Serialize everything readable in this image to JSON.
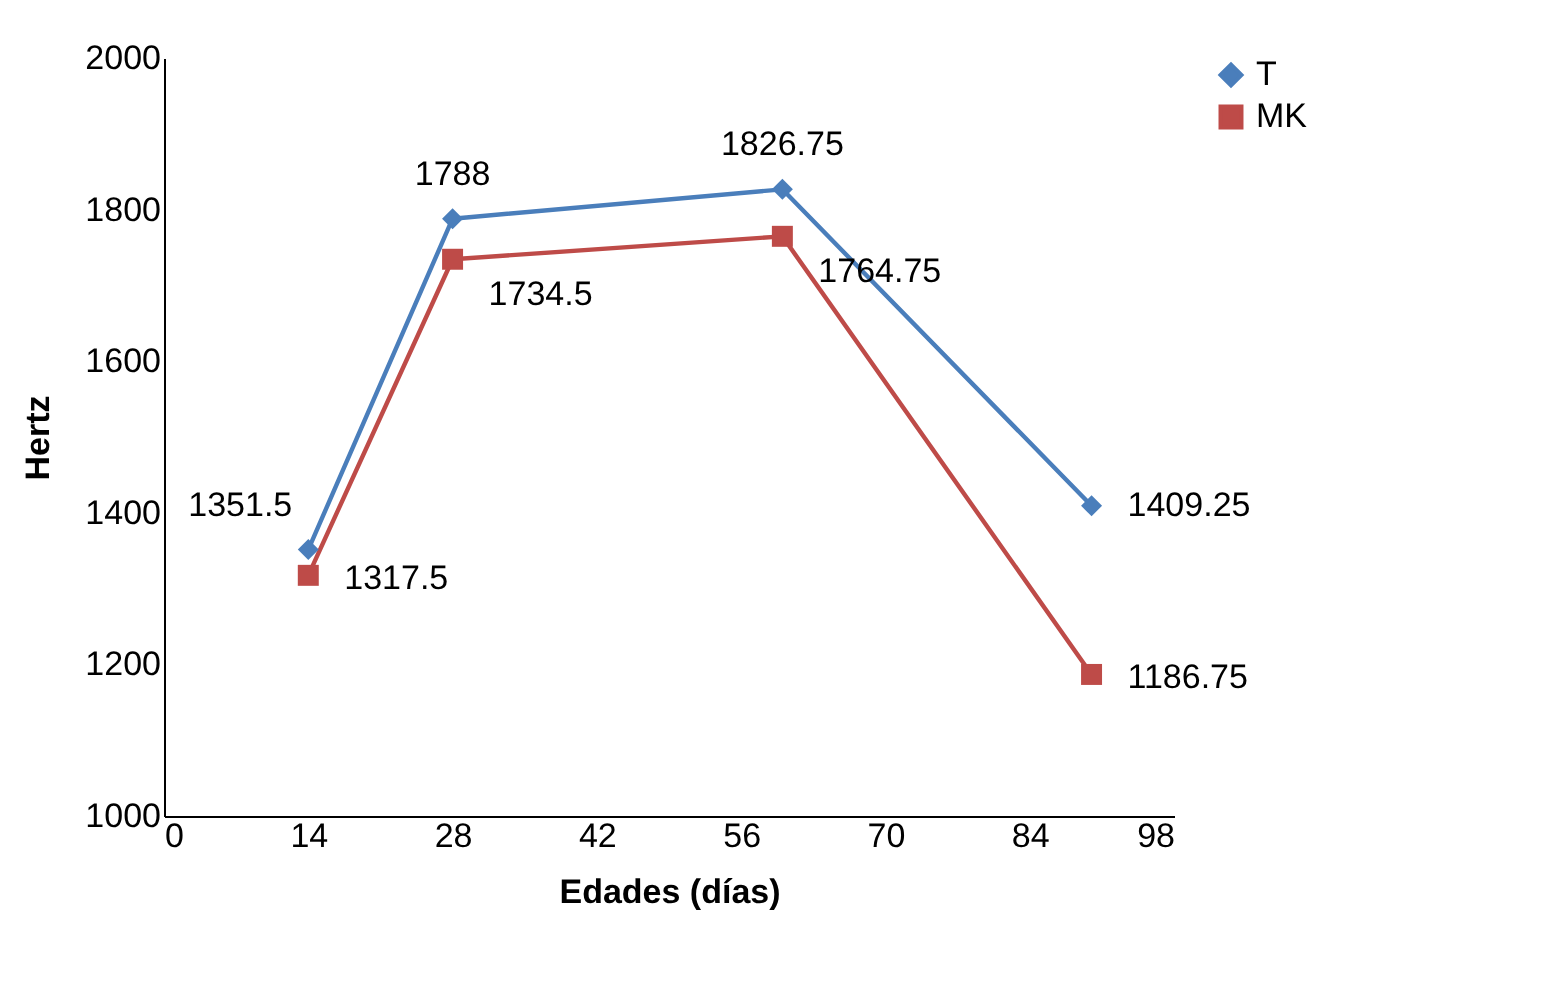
{
  "chart_data": {
    "type": "line",
    "xlabel": "Edades (días)",
    "ylabel": "Hertz",
    "x": [
      14,
      28,
      60,
      90
    ],
    "series": [
      {
        "name": "T",
        "color": "#4a7ebb",
        "marker": "diamond",
        "values": [
          1351.5,
          1788,
          1826.75,
          1409.25
        ]
      },
      {
        "name": "MK",
        "color": "#be4b48",
        "marker": "square",
        "values": [
          1317.5,
          1734.5,
          1764.75,
          1186.75
        ]
      }
    ],
    "xlim": [
      0,
      98
    ],
    "xticks": [
      0,
      14,
      28,
      42,
      56,
      70,
      84,
      98
    ],
    "ylim": [
      1000,
      2000
    ],
    "yticks": [
      1000,
      1200,
      1400,
      1600,
      1800,
      2000
    ],
    "grid": false,
    "legend": "right",
    "data_labels": true
  }
}
